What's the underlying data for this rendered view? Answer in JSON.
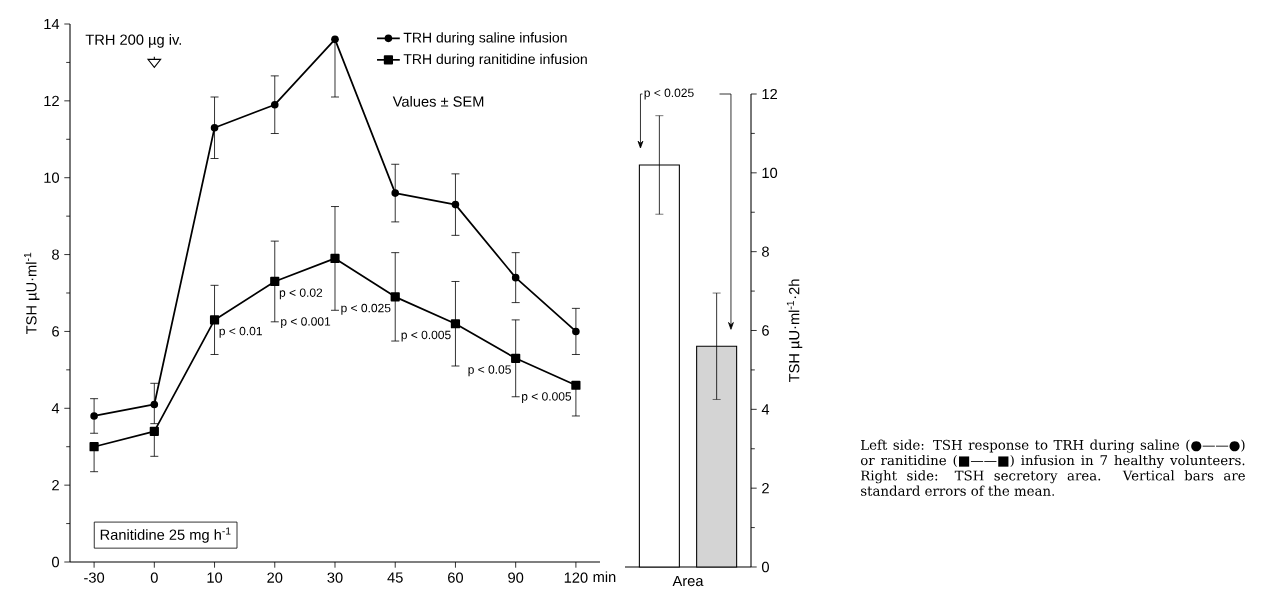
{
  "chart_data": [
    {
      "type": "line",
      "xlabel": "min",
      "ylabel": "TSH µU·ml$^{-1}$",
      "categories": [
        "-30",
        "0",
        "10",
        "20",
        "30",
        "45",
        "60",
        "90",
        "120"
      ],
      "ylim": [
        0,
        14
      ],
      "yticks": [
        0,
        2,
        4,
        6,
        8,
        10,
        12,
        14
      ],
      "legend": "top right",
      "series": [
        {
          "name": "TRH during saline infusion",
          "color": "#000000",
          "marker": "circle",
          "values": [
            3.8,
            4.1,
            11.3,
            11.9,
            13.6,
            9.6,
            9.3,
            7.4,
            6.0
          ],
          "errors": [
            0.45,
            [
              3.6,
              4.65
            ],
            0.8,
            0.75,
            [
              12.1,
              13.6
            ],
            0.75,
            0.8,
            0.65,
            0.6
          ]
        },
        {
          "name": "TRH during ranitidine infusion",
          "color": "#000000",
          "marker": "square",
          "values": [
            3.0,
            3.4,
            6.3,
            7.3,
            7.9,
            6.9,
            6.2,
            5.3,
            4.6
          ],
          "errors": [
            [
              2.35,
              3.0
            ],
            [
              2.75,
              3.4
            ],
            0.9,
            1.05,
            1.35,
            1.15,
            1.1,
            1.0,
            [
              3.8,
              4.6
            ]
          ]
        }
      ],
      "annotations": [
        "TRH 200 µg iv.",
        "Values ± SEM",
        "Ranitidine 25 mg h$^{-1}$",
        {
          "text": "p < 0.01",
          "x": "10",
          "y": 6.3
        },
        {
          "text": "p < 0.02",
          "x": "20",
          "y": 7.3
        },
        {
          "text": "p < 0.001",
          "x": "30",
          "y": 6.55
        },
        {
          "text": "p < 0.025",
          "x": "45",
          "y": 6.9
        },
        {
          "text": "p < 0.005",
          "x": "60",
          "y": 6.2
        },
        {
          "text": "p < 0.05",
          "x": "90",
          "y": 5.3
        },
        {
          "text": "p < 0.005",
          "x": "120",
          "y": 4.6
        }
      ]
    },
    {
      "type": "bar",
      "xlabel": "Area",
      "ylabel": "TSH µU·ml$^{-1}$·2h",
      "categories": [
        null,
        null
      ],
      "values": [
        10.2,
        5.6
      ],
      "colors": [
        "#ffffff",
        "#d4d4d4"
      ],
      "errors": [
        1.25,
        1.35
      ],
      "ylim": [
        0,
        12
      ],
      "yticks": [
        0,
        2,
        4,
        6,
        8,
        10,
        12
      ],
      "annotations": [
        "p < 0.025",
        "Left side: TSH response to TRH during saline (●——●) or ranitidine (■——■) infusion in 7 healthy volunteers. Right side: TSH secretory area. Vertical bars are standard errors of the mean."
      ]
    }
  ]
}
